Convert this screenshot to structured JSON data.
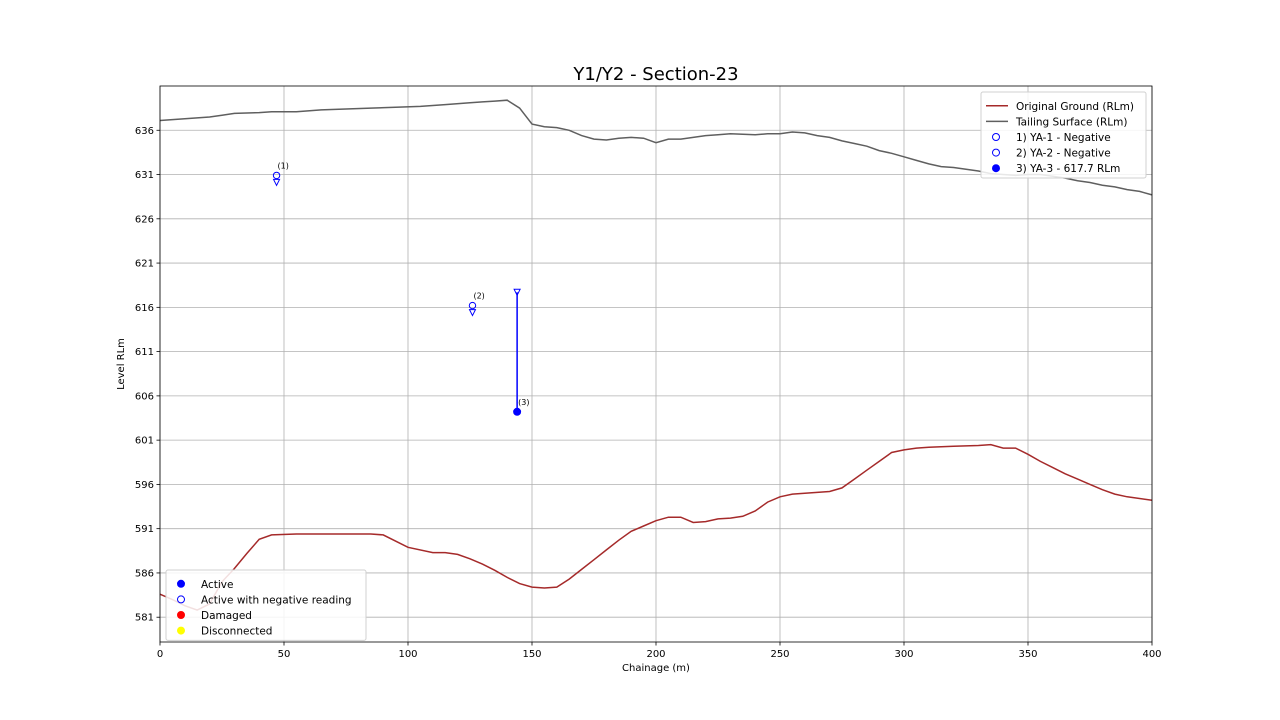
{
  "chart_data": {
    "type": "line",
    "title": "Y1/Y2 - Section-23",
    "xlabel": "Chainage (m)",
    "ylabel": "Level RLm",
    "xlim": [
      0,
      400
    ],
    "ylim": [
      578.2,
      641.0
    ],
    "xticks": [
      0,
      50,
      100,
      150,
      200,
      250,
      300,
      350,
      400
    ],
    "yticks": [
      581,
      586,
      591,
      596,
      601,
      606,
      611,
      616,
      621,
      626,
      631,
      636
    ],
    "grid": true,
    "series": [
      {
        "name": "Original Ground (RLm)",
        "color": "#a52a2a",
        "points": [
          [
            0,
            583.6
          ],
          [
            5,
            583.0
          ],
          [
            10,
            582.3
          ],
          [
            15,
            581.8
          ],
          [
            20,
            582.5
          ],
          [
            25,
            585.0
          ],
          [
            30,
            586.5
          ],
          [
            35,
            588.2
          ],
          [
            40,
            589.8
          ],
          [
            45,
            590.3
          ],
          [
            55,
            590.4
          ],
          [
            65,
            590.4
          ],
          [
            75,
            590.4
          ],
          [
            85,
            590.4
          ],
          [
            90,
            590.3
          ],
          [
            100,
            588.9
          ],
          [
            110,
            588.3
          ],
          [
            115,
            588.3
          ],
          [
            120,
            588.1
          ],
          [
            125,
            587.6
          ],
          [
            130,
            587.0
          ],
          [
            135,
            586.3
          ],
          [
            140,
            585.5
          ],
          [
            145,
            584.8
          ],
          [
            150,
            584.4
          ],
          [
            155,
            584.3
          ],
          [
            160,
            584.4
          ],
          [
            165,
            585.3
          ],
          [
            170,
            586.4
          ],
          [
            175,
            587.5
          ],
          [
            180,
            588.6
          ],
          [
            185,
            589.7
          ],
          [
            190,
            590.7
          ],
          [
            195,
            591.3
          ],
          [
            200,
            591.9
          ],
          [
            205,
            592.3
          ],
          [
            210,
            592.3
          ],
          [
            215,
            591.7
          ],
          [
            220,
            591.8
          ],
          [
            225,
            592.1
          ],
          [
            230,
            592.2
          ],
          [
            235,
            592.4
          ],
          [
            240,
            593.0
          ],
          [
            245,
            594.0
          ],
          [
            250,
            594.6
          ],
          [
            255,
            594.9
          ],
          [
            260,
            595.0
          ],
          [
            265,
            595.1
          ],
          [
            270,
            595.2
          ],
          [
            275,
            595.6
          ],
          [
            280,
            596.6
          ],
          [
            285,
            597.6
          ],
          [
            290,
            598.6
          ],
          [
            295,
            599.6
          ],
          [
            300,
            599.9
          ],
          [
            305,
            600.1
          ],
          [
            310,
            600.2
          ],
          [
            320,
            600.3
          ],
          [
            330,
            600.4
          ],
          [
            335,
            600.5
          ],
          [
            340,
            600.1
          ],
          [
            345,
            600.1
          ],
          [
            350,
            599.4
          ],
          [
            355,
            598.6
          ],
          [
            360,
            597.9
          ],
          [
            365,
            597.2
          ],
          [
            370,
            596.6
          ],
          [
            375,
            596.0
          ],
          [
            380,
            595.4
          ],
          [
            385,
            594.9
          ],
          [
            390,
            594.6
          ],
          [
            400,
            594.2
          ]
        ]
      },
      {
        "name": "Tailing Surface (RLm)",
        "color": "#5f5f5f",
        "points": [
          [
            0,
            637.1
          ],
          [
            5,
            637.2
          ],
          [
            10,
            637.3
          ],
          [
            15,
            637.4
          ],
          [
            20,
            637.5
          ],
          [
            25,
            637.7
          ],
          [
            30,
            637.9
          ],
          [
            40,
            638.0
          ],
          [
            45,
            638.1
          ],
          [
            55,
            638.1
          ],
          [
            65,
            638.3
          ],
          [
            75,
            638.4
          ],
          [
            85,
            638.5
          ],
          [
            95,
            638.6
          ],
          [
            105,
            638.7
          ],
          [
            115,
            638.9
          ],
          [
            125,
            639.1
          ],
          [
            130,
            639.2
          ],
          [
            135,
            639.3
          ],
          [
            140,
            639.4
          ],
          [
            145,
            638.5
          ],
          [
            150,
            636.7
          ],
          [
            155,
            636.4
          ],
          [
            160,
            636.3
          ],
          [
            165,
            636.0
          ],
          [
            170,
            635.4
          ],
          [
            175,
            635.0
          ],
          [
            180,
            634.9
          ],
          [
            185,
            635.1
          ],
          [
            190,
            635.2
          ],
          [
            195,
            635.1
          ],
          [
            200,
            634.6
          ],
          [
            205,
            635.0
          ],
          [
            210,
            635.0
          ],
          [
            215,
            635.2
          ],
          [
            220,
            635.4
          ],
          [
            225,
            635.5
          ],
          [
            230,
            635.6
          ],
          [
            240,
            635.5
          ],
          [
            245,
            635.6
          ],
          [
            250,
            635.6
          ],
          [
            255,
            635.8
          ],
          [
            260,
            635.7
          ],
          [
            265,
            635.4
          ],
          [
            270,
            635.2
          ],
          [
            275,
            634.8
          ],
          [
            280,
            634.5
          ],
          [
            285,
            634.2
          ],
          [
            290,
            633.7
          ],
          [
            295,
            633.4
          ],
          [
            300,
            633.0
          ],
          [
            305,
            632.6
          ],
          [
            310,
            632.2
          ],
          [
            315,
            631.9
          ],
          [
            320,
            631.8
          ],
          [
            325,
            631.6
          ],
          [
            330,
            631.4
          ],
          [
            335,
            631.1
          ],
          [
            340,
            631.0
          ],
          [
            345,
            630.9
          ],
          [
            350,
            631.0
          ],
          [
            355,
            631.0
          ],
          [
            360,
            630.8
          ],
          [
            365,
            630.6
          ],
          [
            370,
            630.3
          ],
          [
            375,
            630.1
          ],
          [
            380,
            629.8
          ],
          [
            385,
            629.6
          ],
          [
            390,
            629.3
          ],
          [
            395,
            629.1
          ],
          [
            400,
            628.7
          ]
        ]
      }
    ],
    "piezometers": [
      {
        "label": "(1)",
        "name": "1) YA-1 - Negative",
        "x": 47,
        "y": 630.9,
        "fill": "none",
        "marker_top": 630.3,
        "marker_bottom": 630.3
      },
      {
        "label": "(2)",
        "name": "2) YA-2 - Negative",
        "x": 126,
        "y": 616.2,
        "fill": "none",
        "marker_top": 615.5,
        "marker_bottom": 615.5
      },
      {
        "label": "(3)",
        "name": "3) YA-3 - 617.7 RLm",
        "x": 144,
        "y": 604.2,
        "fill": "#0000ff",
        "marker_top": 617.7,
        "marker_bottom": 604.2
      }
    ],
    "legend_upper": {
      "placement": "top-right",
      "items": [
        {
          "label": "Original Ground (RLm)",
          "kind": "line",
          "color": "#a52a2a"
        },
        {
          "label": "Tailing Surface (RLm)",
          "kind": "line",
          "color": "#5f5f5f"
        },
        {
          "label": "1) YA-1 - Negative",
          "kind": "hollow",
          "color": "#0000ff"
        },
        {
          "label": "2) YA-2 - Negative",
          "kind": "hollow",
          "color": "#0000ff"
        },
        {
          "label": "3) YA-3 - 617.7 RLm",
          "kind": "filled",
          "color": "#0000ff"
        }
      ]
    },
    "legend_lower": {
      "placement": "bottom-left",
      "items": [
        {
          "label": "Active",
          "kind": "filled",
          "color": "#0000ff"
        },
        {
          "label": "Active with negative reading",
          "kind": "hollow",
          "color": "#0000ff"
        },
        {
          "label": "Damaged",
          "kind": "filled",
          "color": "#ff0000"
        },
        {
          "label": "Disconnected",
          "kind": "filled",
          "color": "#ffff00"
        }
      ]
    }
  }
}
